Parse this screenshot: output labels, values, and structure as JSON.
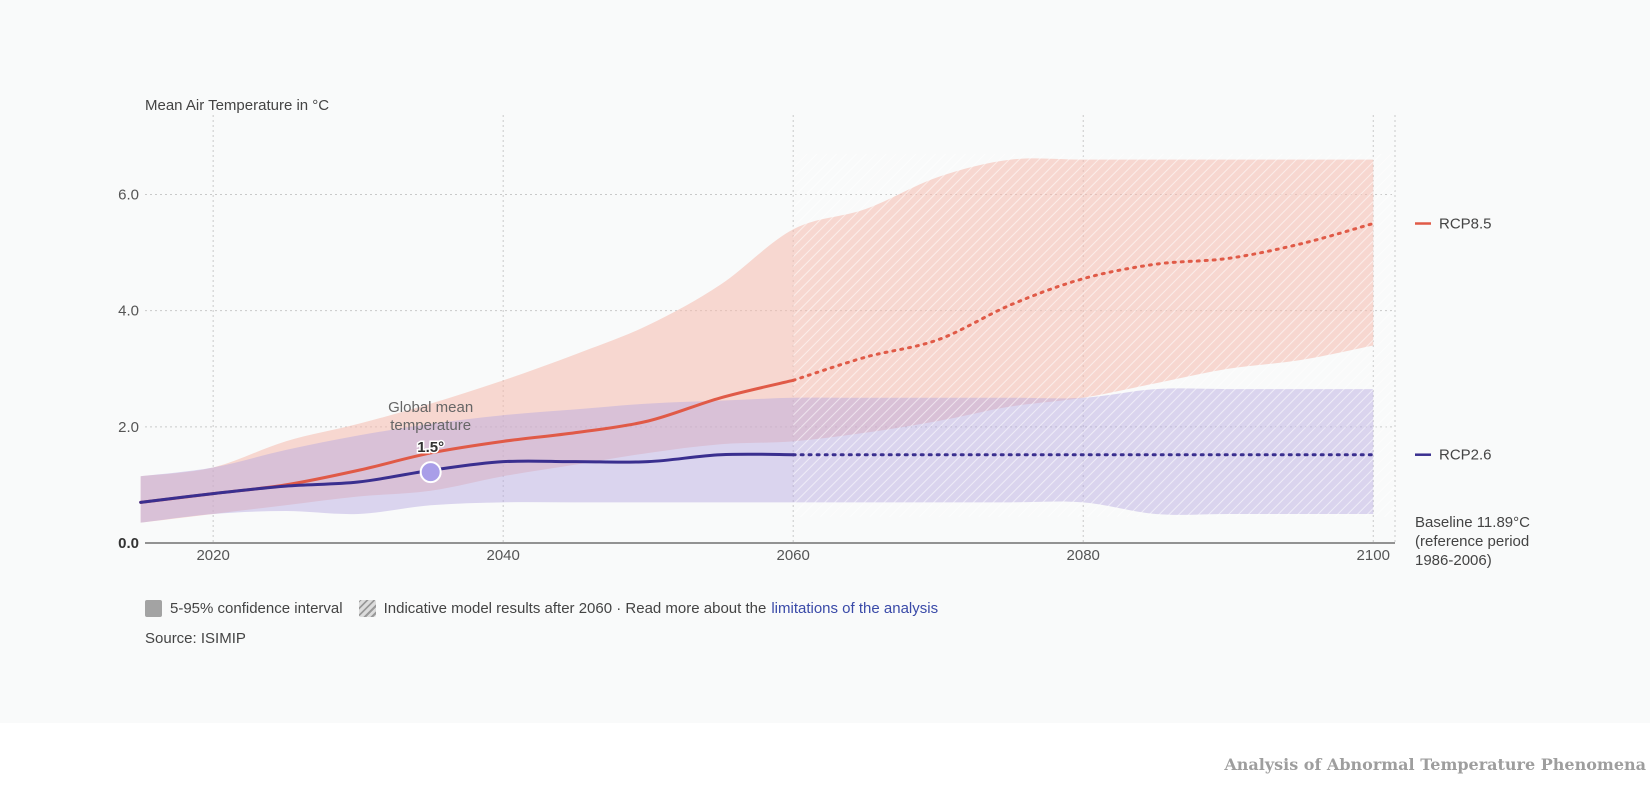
{
  "chart_data": {
    "type": "line",
    "ylabel": "Mean Air Temperature in °C",
    "xlim": [
      2015,
      2102
    ],
    "ylim": [
      0,
      7
    ],
    "x_ticks": [
      2020,
      2040,
      2060,
      2080,
      2100
    ],
    "y_ticks": [
      0,
      2,
      4,
      6
    ],
    "y_tick_labels": [
      "0.0",
      "2.0",
      "4.0",
      "6.0"
    ],
    "grid": true,
    "hatched_after": 2060,
    "series": [
      {
        "name": "RCP8.5",
        "color": "#e05a47",
        "x": [
          2015,
          2020,
          2025,
          2030,
          2035,
          2040,
          2045,
          2050,
          2055,
          2060,
          2065,
          2070,
          2075,
          2080,
          2085,
          2090,
          2095,
          2100
        ],
        "y": [
          0.7,
          0.85,
          1.0,
          1.25,
          1.55,
          1.75,
          1.9,
          2.1,
          2.5,
          2.8,
          3.2,
          3.5,
          4.1,
          4.55,
          4.8,
          4.9,
          5.15,
          5.5
        ],
        "band_upper": [
          1.15,
          1.3,
          1.75,
          2.05,
          2.4,
          2.8,
          3.25,
          3.75,
          4.45,
          5.4,
          5.75,
          6.3,
          6.6,
          6.6,
          6.6,
          6.6,
          6.6,
          6.6
        ],
        "band_lower": [
          0.35,
          0.5,
          0.65,
          0.8,
          0.9,
          1.15,
          1.35,
          1.55,
          1.7,
          1.75,
          1.9,
          2.1,
          2.35,
          2.5,
          2.75,
          3.0,
          3.15,
          3.4
        ]
      },
      {
        "name": "RCP2.6",
        "color": "#3a2f8f",
        "x": [
          2015,
          2020,
          2025,
          2030,
          2035,
          2040,
          2045,
          2050,
          2055,
          2060,
          2065,
          2070,
          2075,
          2080,
          2085,
          2090,
          2095,
          2100
        ],
        "y": [
          0.7,
          0.85,
          0.98,
          1.05,
          1.25,
          1.4,
          1.4,
          1.4,
          1.52,
          1.52,
          1.52,
          1.52,
          1.52,
          1.52,
          1.52,
          1.52,
          1.52,
          1.52
        ],
        "band_upper": [
          1.15,
          1.3,
          1.6,
          1.85,
          2.05,
          2.2,
          2.3,
          2.4,
          2.45,
          2.5,
          2.5,
          2.5,
          2.5,
          2.5,
          2.65,
          2.65,
          2.65,
          2.65
        ],
        "band_lower": [
          0.35,
          0.5,
          0.55,
          0.5,
          0.65,
          0.7,
          0.7,
          0.7,
          0.7,
          0.7,
          0.7,
          0.7,
          0.7,
          0.7,
          0.5,
          0.5,
          0.5,
          0.5
        ]
      }
    ],
    "annotation": {
      "label": "Global mean temperature",
      "value_label": "1.5°",
      "x": 2035,
      "y": 1.22
    }
  },
  "legend": {
    "confidence": "5-95% confidence interval",
    "indicative": "Indicative model results after 2060 · Read more about the",
    "link": "limitations of the analysis"
  },
  "baseline": {
    "line1": "Baseline 11.89°C",
    "line2": "(reference period",
    "line3": "1986-2006)"
  },
  "source": "Source: ISIMIP",
  "footer_title": "Analysis of Abnormal Temperature Phenomena"
}
